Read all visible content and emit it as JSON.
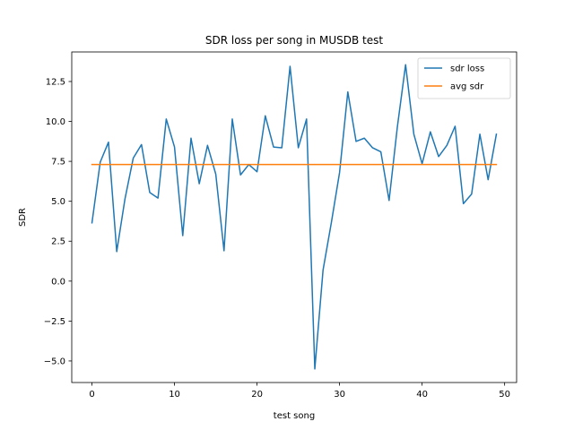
{
  "chart_data": {
    "type": "line",
    "title": "SDR loss per song in MUSDB test",
    "xlabel": "test song",
    "ylabel": "SDR",
    "xlim": [
      -2.45,
      51.45
    ],
    "ylim": [
      -6.35,
      14.35
    ],
    "xticks": [
      0,
      10,
      20,
      30,
      40,
      50
    ],
    "yticks": [
      -5.0,
      -2.5,
      0.0,
      2.5,
      5.0,
      7.5,
      10.0,
      12.5
    ],
    "xtick_labels": [
      "0",
      "10",
      "20",
      "30",
      "40",
      "50"
    ],
    "ytick_labels": [
      "−5.0",
      "−2.5",
      "0.0",
      "2.5",
      "5.0",
      "7.5",
      "10.0",
      "12.5"
    ],
    "grid": false,
    "legend_position": "top-right",
    "series": [
      {
        "name": "sdr loss",
        "color": "#1f77b4",
        "x": [
          0,
          1,
          2,
          3,
          4,
          5,
          6,
          7,
          8,
          9,
          10,
          11,
          12,
          13,
          14,
          15,
          16,
          17,
          18,
          19,
          20,
          21,
          22,
          23,
          24,
          25,
          26,
          27,
          28,
          29,
          30,
          31,
          32,
          33,
          34,
          35,
          36,
          37,
          38,
          39,
          40,
          41,
          42,
          43,
          44,
          45,
          46,
          47,
          48,
          49
        ],
        "y": [
          3.65,
          7.45,
          8.7,
          1.85,
          5.15,
          7.7,
          8.55,
          5.55,
          5.2,
          10.15,
          8.4,
          2.85,
          8.95,
          6.1,
          8.5,
          6.7,
          1.9,
          10.15,
          6.65,
          7.3,
          6.85,
          10.35,
          8.4,
          8.35,
          13.45,
          8.35,
          10.15,
          -5.5,
          0.7,
          3.65,
          6.8,
          11.85,
          8.75,
          8.95,
          8.35,
          8.1,
          5.05,
          9.65,
          13.55,
          9.2,
          7.35,
          9.35,
          7.8,
          8.5,
          9.7,
          4.85,
          5.45,
          9.2,
          6.35,
          9.2
        ]
      },
      {
        "name": "avg sdr",
        "color": "#ff7f0e",
        "x": [
          0,
          49
        ],
        "y": [
          7.3,
          7.3
        ]
      }
    ]
  }
}
